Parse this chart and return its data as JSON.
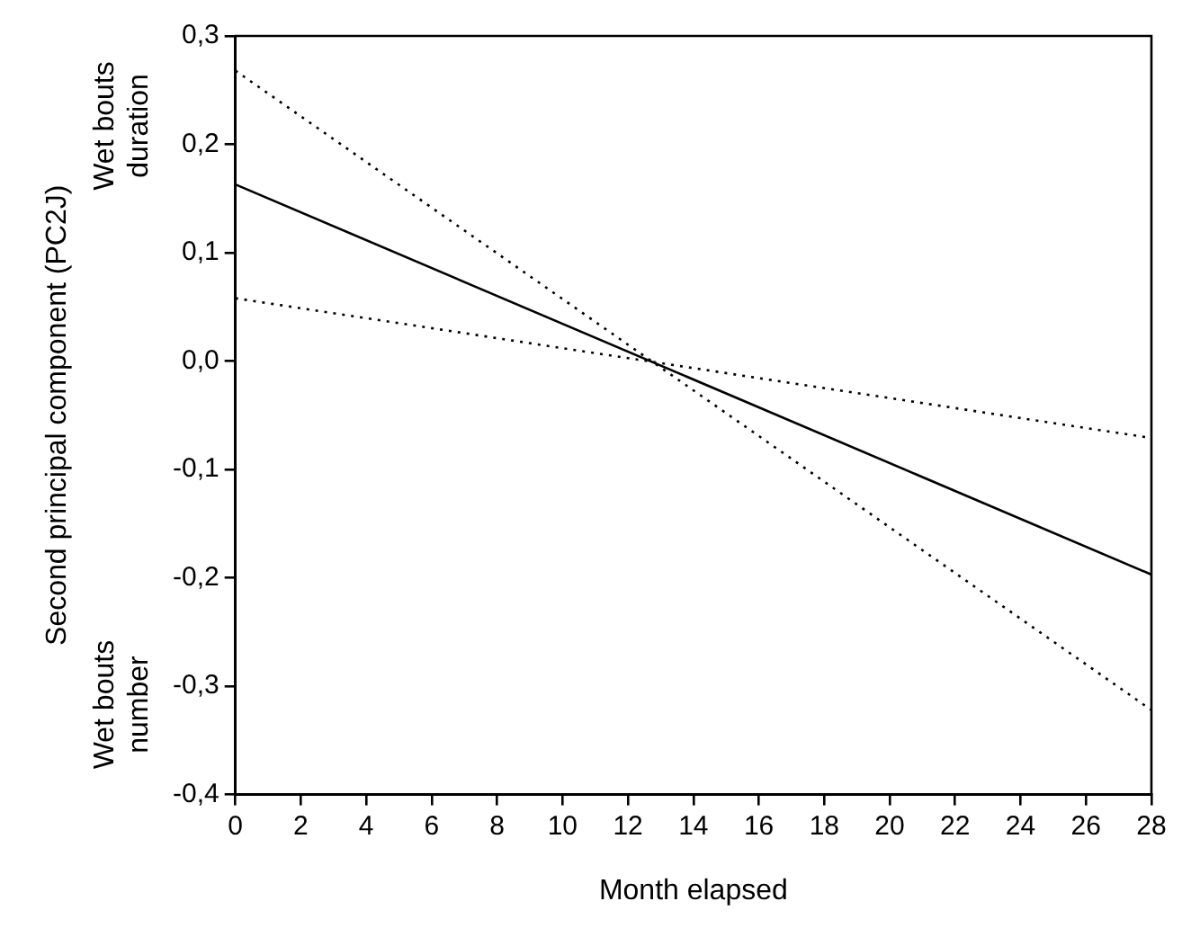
{
  "chart_data": {
    "type": "line",
    "xlabel": "Month elapsed",
    "ylabel": "Second principal component (PC2J)",
    "annotations": [
      "Wet bouts duration",
      "Wet bouts number"
    ],
    "x": [
      0,
      28
    ],
    "series": [
      {
        "color": "#000000",
        "line_style": "solid",
        "values": [
          0.163,
          -0.197
        ]
      },
      {
        "color": "#000000",
        "line_style": "dotted",
        "values": [
          0.268,
          -0.322
        ]
      },
      {
        "color": "#000000",
        "line_style": "dotted",
        "values": [
          0.058,
          -0.071
        ]
      }
    ],
    "xlim": [
      0,
      28
    ],
    "xticks": [
      0,
      2,
      4,
      6,
      8,
      10,
      12,
      14,
      16,
      18,
      20,
      22,
      24,
      26,
      28
    ],
    "ylim": [
      -0.4,
      0.3
    ],
    "yticks": [
      {
        "value": -0.4,
        "label": "-0,4"
      },
      {
        "value": -0.3,
        "label": "-0,3"
      },
      {
        "value": -0.2,
        "label": "-0,2"
      },
      {
        "value": -0.1,
        "label": "-0,1"
      },
      {
        "value": 0,
        "label": "0,0"
      },
      {
        "value": 0.1,
        "label": "0,1"
      },
      {
        "value": 0.2,
        "label": "0,2"
      },
      {
        "value": 0.3,
        "label": "0,3"
      }
    ],
    "grid": false,
    "legend": false,
    "marker": "none"
  }
}
